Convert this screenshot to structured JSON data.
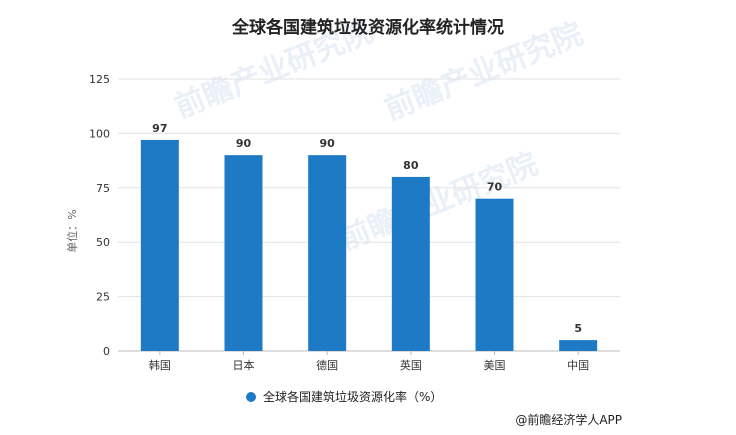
{
  "chart_data": {
    "type": "bar",
    "title": "全球各国建筑垃圾资源化率统计情况",
    "ylabel": "单位：%",
    "categories": [
      "韩国",
      "日本",
      "德国",
      "英国",
      "美国",
      "中国"
    ],
    "series": [
      {
        "name": "全球各国建筑垃圾资源化率（%）",
        "values": [
          97,
          90,
          90,
          80,
          70,
          5
        ]
      }
    ],
    "ylim": [
      0,
      125
    ],
    "yticks": [
      0,
      25,
      50,
      75,
      100,
      125
    ],
    "grid": true,
    "legend_position": "bottom",
    "data_labels": [
      "97",
      "90",
      "90",
      "80",
      "70",
      "5"
    ]
  },
  "colors": {
    "bar": "#1f7ac6",
    "grid": "#e3e3e3",
    "axis": "#bbbbbb"
  },
  "watermark": "前瞻产业研究院",
  "source": "@前瞻经济学人APP"
}
